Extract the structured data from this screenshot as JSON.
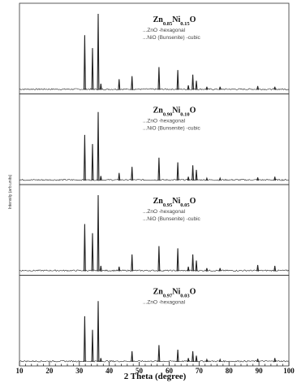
{
  "chart_data": {
    "type": "line",
    "xlabel": "2 Theta (degree)",
    "ylabel": "Intensity (arb.units)",
    "xlim": [
      10,
      100
    ],
    "x_ticks": [
      "10",
      "20",
      "30",
      "40",
      "50",
      "60",
      "70",
      "80",
      "90",
      "100"
    ],
    "legend_placement": "top-center",
    "grid": false,
    "line_color": "#222222",
    "panels": [
      {
        "name": "Zn0.85Ni0.15O",
        "label_main": "Zn",
        "label_sub1": "0.85",
        "label_mid": "Ni",
        "label_sub2": "0.15",
        "label_end": "O",
        "legend": [
          "...ZnO -hexagonal",
          "...NiO (Bunsenite) -cubic"
        ],
        "peaks": [
          {
            "x": 31.8,
            "y": 0.72
          },
          {
            "x": 34.4,
            "y": 0.55
          },
          {
            "x": 36.3,
            "y": 1.0
          },
          {
            "x": 37.2,
            "y": 0.08
          },
          {
            "x": 43.3,
            "y": 0.14
          },
          {
            "x": 47.6,
            "y": 0.18
          },
          {
            "x": 56.6,
            "y": 0.3
          },
          {
            "x": 62.9,
            "y": 0.26
          },
          {
            "x": 66.4,
            "y": 0.06
          },
          {
            "x": 67.9,
            "y": 0.2
          },
          {
            "x": 69.1,
            "y": 0.12
          },
          {
            "x": 72.6,
            "y": 0.04
          },
          {
            "x": 77.0,
            "y": 0.04
          },
          {
            "x": 89.6,
            "y": 0.05
          },
          {
            "x": 95.3,
            "y": 0.04
          }
        ]
      },
      {
        "name": "Zn0.90Ni0.10O",
        "label_main": "Zn",
        "label_sub1": "0.90",
        "label_mid": "Ni",
        "label_sub2": "0.10",
        "label_end": "O",
        "legend": [
          "...ZnO -hexagonal",
          "...NiO (Bunsenite) -cubic"
        ],
        "peaks": [
          {
            "x": 31.8,
            "y": 0.6
          },
          {
            "x": 34.4,
            "y": 0.48
          },
          {
            "x": 36.3,
            "y": 0.9
          },
          {
            "x": 37.2,
            "y": 0.06
          },
          {
            "x": 43.3,
            "y": 0.1
          },
          {
            "x": 47.6,
            "y": 0.18
          },
          {
            "x": 56.6,
            "y": 0.3
          },
          {
            "x": 62.9,
            "y": 0.24
          },
          {
            "x": 66.4,
            "y": 0.05
          },
          {
            "x": 67.9,
            "y": 0.2
          },
          {
            "x": 69.1,
            "y": 0.14
          },
          {
            "x": 72.6,
            "y": 0.03
          },
          {
            "x": 77.0,
            "y": 0.03
          },
          {
            "x": 89.6,
            "y": 0.04
          },
          {
            "x": 95.3,
            "y": 0.05
          }
        ]
      },
      {
        "name": "Zn0.95Ni0.05O",
        "label_main": "Zn",
        "label_sub1": "0.95",
        "label_mid": "Ni",
        "label_sub2": "0.05",
        "label_end": "O",
        "legend": [
          "...ZnO -hexagonal",
          "...NiO (Bunsenite) -cubic"
        ],
        "peaks": [
          {
            "x": 31.8,
            "y": 0.62
          },
          {
            "x": 34.4,
            "y": 0.5
          },
          {
            "x": 36.3,
            "y": 1.0
          },
          {
            "x": 37.2,
            "y": 0.07
          },
          {
            "x": 43.3,
            "y": 0.06
          },
          {
            "x": 47.6,
            "y": 0.22
          },
          {
            "x": 56.6,
            "y": 0.33
          },
          {
            "x": 62.9,
            "y": 0.3
          },
          {
            "x": 66.4,
            "y": 0.06
          },
          {
            "x": 67.9,
            "y": 0.22
          },
          {
            "x": 69.1,
            "y": 0.14
          },
          {
            "x": 72.6,
            "y": 0.04
          },
          {
            "x": 77.0,
            "y": 0.04
          },
          {
            "x": 89.6,
            "y": 0.08
          },
          {
            "x": 95.3,
            "y": 0.07
          }
        ]
      },
      {
        "name": "Zn0.97Ni0.03O",
        "label_main": "Zn",
        "label_sub1": "0.97",
        "label_mid": "Ni",
        "label_sub2": "0.03",
        "label_end": "O",
        "legend": [
          "...ZnO -hexagonal"
        ],
        "peaks": [
          {
            "x": 31.8,
            "y": 0.6
          },
          {
            "x": 34.4,
            "y": 0.42
          },
          {
            "x": 36.3,
            "y": 0.8
          },
          {
            "x": 37.2,
            "y": 0.05
          },
          {
            "x": 47.6,
            "y": 0.14
          },
          {
            "x": 56.6,
            "y": 0.22
          },
          {
            "x": 62.9,
            "y": 0.16
          },
          {
            "x": 66.4,
            "y": 0.05
          },
          {
            "x": 67.9,
            "y": 0.14
          },
          {
            "x": 69.1,
            "y": 0.08
          },
          {
            "x": 72.6,
            "y": 0.03
          },
          {
            "x": 77.0,
            "y": 0.03
          },
          {
            "x": 89.6,
            "y": 0.04
          },
          {
            "x": 95.3,
            "y": 0.05
          }
        ]
      }
    ]
  }
}
